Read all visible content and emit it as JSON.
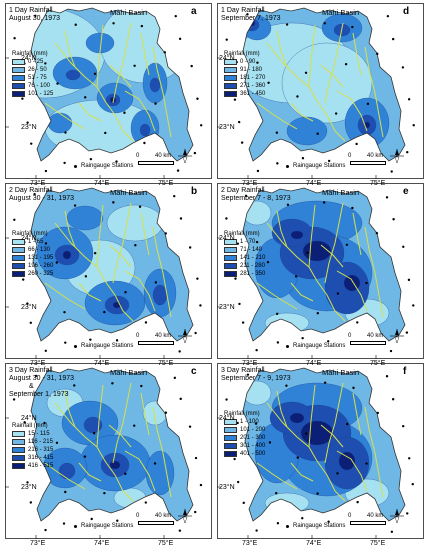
{
  "basin_label": "Mahi Basin",
  "legend_title": "Rainfall (mm)",
  "station_label": "Raingauge Stations",
  "scale": {
    "zero": "0",
    "end": "40 km"
  },
  "lat_labels": [
    "24°N",
    "23°N"
  ],
  "lon_labels": [
    "73°E",
    "74°E",
    "75°E"
  ],
  "colors": [
    "#a6e1f2",
    "#6fb8e6",
    "#2f82d6",
    "#1e4fb0",
    "#0b1f76"
  ],
  "river_color": "#d5e04a",
  "panels": [
    {
      "letter": "a",
      "title": [
        "1 Day Rainfall",
        "August 30, 1973"
      ],
      "classes": [
        "0 - 25",
        "26 - 50",
        "51 - 75",
        "76 - 100",
        "101 - 125"
      ]
    },
    {
      "letter": "d",
      "title": [
        "1 Day Rainfall",
        "September 7, 1973"
      ],
      "classes": [
        "0 - 90",
        "91 - 180",
        "181 - 270",
        "271 - 360",
        "361 - 450"
      ]
    },
    {
      "letter": "b",
      "title": [
        "2 Day Rainfall",
        "August 30 - 31, 1973"
      ],
      "classes": [
        "1 - 65",
        "66 - 130",
        "131 - 195",
        "196 - 260",
        "260 - 325"
      ]
    },
    {
      "letter": "e",
      "title": [
        "2 Day Rainfall",
        "September 7 - 8, 1973"
      ],
      "classes": [
        "1 - 70",
        "71 - 140",
        "141 - 210",
        "211 - 280",
        "281 - 350"
      ]
    },
    {
      "letter": "c",
      "title": [
        "3 Day Rainfall",
        "August 30 - 31, 1973",
        "&",
        "September 1, 1973"
      ],
      "classes": [
        "15 - 115",
        "116 - 215",
        "216 - 315",
        "316 - 415",
        "416 - 515"
      ]
    },
    {
      "letter": "f",
      "title": [
        "3 Day Rainfall",
        "September 7 - 9, 1973"
      ],
      "classes": [
        "1 - 100",
        "101 - 200",
        "201 - 300",
        "301 - 400",
        "401 - 500"
      ]
    }
  ]
}
